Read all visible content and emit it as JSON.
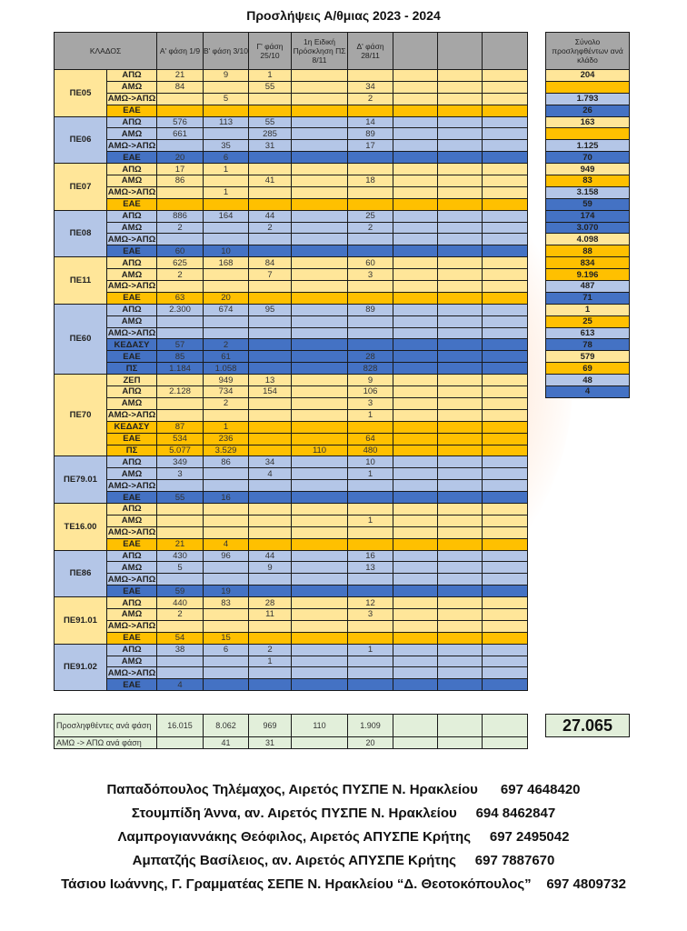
{
  "title": "Προσλήψεις Α/θμιας 2023 - 2024",
  "headers": {
    "klados": "ΚΛΑΔΟΣ",
    "phases": [
      "Α' φάση 1/9",
      "Β' φάση 3/10",
      "Γ' φάση 25/10",
      "1η Ειδική Πρόσκληση ΠΣ 8/11",
      "Δ' φάση 28/11",
      "",
      "",
      ""
    ],
    "total": "Σύνολο προσληφθέντων ανά κλάδο"
  },
  "colors": {
    "yellow": "#ffe699",
    "orange": "#ffc000",
    "light_blue": "#b4c6e7",
    "dark_blue": "#4472c4"
  },
  "groups": [
    {
      "name": "ΠΕ05",
      "theme": "y",
      "total": "204",
      "rows": [
        {
          "label": "ΑΠΩ",
          "v": [
            "21",
            "9",
            "1",
            "",
            ""
          ]
        },
        {
          "label": "ΑΜΩ",
          "v": [
            "84",
            "",
            "55",
            "",
            "34"
          ]
        },
        {
          "label": "ΑΜΩ->ΑΠΩ",
          "v": [
            "",
            "5",
            "",
            "",
            "2"
          ]
        },
        {
          "label": "ΕΑΕ",
          "v": [
            "",
            "",
            "",
            "",
            ""
          ],
          "special": true,
          "total": ""
        }
      ]
    },
    {
      "name": "ΠΕ06",
      "theme": "b",
      "total": "1.793",
      "rows": [
        {
          "label": "ΑΠΩ",
          "v": [
            "576",
            "113",
            "55",
            "",
            "14"
          ]
        },
        {
          "label": "ΑΜΩ",
          "v": [
            "661",
            "",
            "285",
            "",
            "89"
          ]
        },
        {
          "label": "ΑΜΩ->ΑΠΩ",
          "v": [
            "",
            "35",
            "31",
            "",
            "17"
          ]
        },
        {
          "label": "ΕΑΕ",
          "v": [
            "20",
            "6",
            "",
            "",
            ""
          ],
          "special": true,
          "total": "26"
        }
      ]
    },
    {
      "name": "ΠΕ07",
      "theme": "y",
      "total": "163",
      "rows": [
        {
          "label": "ΑΠΩ",
          "v": [
            "17",
            "1",
            "",
            "",
            ""
          ]
        },
        {
          "label": "ΑΜΩ",
          "v": [
            "86",
            "",
            "41",
            "",
            "18"
          ]
        },
        {
          "label": "ΑΜΩ->ΑΠΩ",
          "v": [
            "",
            "1",
            "",
            "",
            ""
          ]
        },
        {
          "label": "ΕΑΕ",
          "v": [
            "",
            "",
            "",
            "",
            ""
          ],
          "special": true,
          "total": ""
        }
      ]
    },
    {
      "name": "ΠΕ08",
      "theme": "b",
      "total": "1.125",
      "rows": [
        {
          "label": "ΑΠΩ",
          "v": [
            "886",
            "164",
            "44",
            "",
            "25"
          ]
        },
        {
          "label": "ΑΜΩ",
          "v": [
            "2",
            "",
            "2",
            "",
            "2"
          ]
        },
        {
          "label": "ΑΜΩ->ΑΠΩ",
          "v": [
            "",
            "",
            "",
            "",
            ""
          ]
        },
        {
          "label": "ΕΑΕ",
          "v": [
            "60",
            "10",
            "",
            "",
            ""
          ],
          "special": true,
          "total": "70"
        }
      ]
    },
    {
      "name": "ΠΕ11",
      "theme": "y",
      "total": "949",
      "rows": [
        {
          "label": "ΑΠΩ",
          "v": [
            "625",
            "168",
            "84",
            "",
            "60"
          ]
        },
        {
          "label": "ΑΜΩ",
          "v": [
            "2",
            "",
            "7",
            "",
            "3"
          ]
        },
        {
          "label": "ΑΜΩ->ΑΠΩ",
          "v": [
            "",
            "",
            "",
            "",
            ""
          ]
        },
        {
          "label": "ΕΑΕ",
          "v": [
            "63",
            "20",
            "",
            "",
            ""
          ],
          "special": true,
          "total": "83"
        }
      ]
    },
    {
      "name": "ΠΕ60",
      "theme": "b",
      "total": "3.158",
      "rows": [
        {
          "label": "ΑΠΩ",
          "v": [
            "2.300",
            "674",
            "95",
            "",
            "89"
          ]
        },
        {
          "label": "ΑΜΩ",
          "v": [
            "",
            "",
            "",
            "",
            ""
          ]
        },
        {
          "label": "ΑΜΩ->ΑΠΩ",
          "v": [
            "",
            "",
            "",
            "",
            ""
          ]
        },
        {
          "label": "ΚΕΔΑΣΥ",
          "v": [
            "57",
            "2",
            "",
            "",
            ""
          ],
          "special": true,
          "total": "59"
        },
        {
          "label": "ΕΑΕ",
          "v": [
            "85",
            "61",
            "",
            "",
            "28"
          ],
          "special": true,
          "total": "174"
        },
        {
          "label": "ΠΣ",
          "v": [
            "1.184",
            "1.058",
            "",
            "",
            "828"
          ],
          "special": true,
          "total": "3.070"
        }
      ]
    },
    {
      "name": "ΠΕ70",
      "theme": "y",
      "total": "4.098",
      "rows": [
        {
          "label": "ΖΕΠ",
          "v": [
            "",
            "949",
            "13",
            "",
            "9"
          ]
        },
        {
          "label": "ΑΠΩ",
          "v": [
            "2.128",
            "734",
            "154",
            "",
            "106"
          ]
        },
        {
          "label": "ΑΜΩ",
          "v": [
            "",
            "2",
            "",
            "",
            "3"
          ]
        },
        {
          "label": "ΑΜΩ->ΑΠΩ",
          "v": [
            "",
            "",
            "",
            "",
            "1"
          ]
        },
        {
          "label": "ΚΕΔΑΣΥ",
          "v": [
            "87",
            "1",
            "",
            "",
            ""
          ],
          "special": true,
          "total": "88"
        },
        {
          "label": "ΕΑΕ",
          "v": [
            "534",
            "236",
            "",
            "",
            "64"
          ],
          "special": true,
          "total": "834"
        },
        {
          "label": "ΠΣ",
          "v": [
            "5.077",
            "3.529",
            "",
            "110",
            "480"
          ],
          "special": true,
          "total": "9.196"
        }
      ]
    },
    {
      "name": "ΠΕ79.01",
      "theme": "b",
      "total": "487",
      "rows": [
        {
          "label": "ΑΠΩ",
          "v": [
            "349",
            "86",
            "34",
            "",
            "10"
          ]
        },
        {
          "label": "ΑΜΩ",
          "v": [
            "3",
            "",
            "4",
            "",
            "1"
          ]
        },
        {
          "label": "ΑΜΩ->ΑΠΩ",
          "v": [
            "",
            "",
            "",
            "",
            ""
          ]
        },
        {
          "label": "ΕΑΕ",
          "v": [
            "55",
            "16",
            "",
            "",
            ""
          ],
          "special": true,
          "total": "71"
        }
      ]
    },
    {
      "name": "ΤΕ16.00",
      "theme": "y",
      "total": "1",
      "rows": [
        {
          "label": "ΑΠΩ",
          "v": [
            "",
            "",
            "",
            "",
            ""
          ]
        },
        {
          "label": "ΑΜΩ",
          "v": [
            "",
            "",
            "",
            "",
            "1"
          ]
        },
        {
          "label": "ΑΜΩ->ΑΠΩ",
          "v": [
            "",
            "",
            "",
            "",
            ""
          ]
        },
        {
          "label": "ΕΑΕ",
          "v": [
            "21",
            "4",
            "",
            "",
            ""
          ],
          "special": true,
          "total": "25"
        }
      ]
    },
    {
      "name": "ΠΕ86",
      "theme": "b",
      "total": "613",
      "rows": [
        {
          "label": "ΑΠΩ",
          "v": [
            "430",
            "96",
            "44",
            "",
            "16"
          ]
        },
        {
          "label": "ΑΜΩ",
          "v": [
            "5",
            "",
            "9",
            "",
            "13"
          ]
        },
        {
          "label": "ΑΜΩ->ΑΠΩ",
          "v": [
            "",
            "",
            "",
            "",
            ""
          ]
        },
        {
          "label": "ΕΑΕ",
          "v": [
            "59",
            "19",
            "",
            "",
            ""
          ],
          "special": true,
          "total": "78"
        }
      ]
    },
    {
      "name": "ΠΕ91.01",
      "theme": "y",
      "total": "579",
      "rows": [
        {
          "label": "ΑΠΩ",
          "v": [
            "440",
            "83",
            "28",
            "",
            "12"
          ]
        },
        {
          "label": "ΑΜΩ",
          "v": [
            "2",
            "",
            "11",
            "",
            "3"
          ]
        },
        {
          "label": "ΑΜΩ->ΑΠΩ",
          "v": [
            "",
            "",
            "",
            "",
            ""
          ]
        },
        {
          "label": "ΕΑΕ",
          "v": [
            "54",
            "15",
            "",
            "",
            ""
          ],
          "special": true,
          "total": "69"
        }
      ]
    },
    {
      "name": "ΠΕ91.02",
      "theme": "b",
      "total": "48",
      "rows": [
        {
          "label": "ΑΠΩ",
          "v": [
            "38",
            "6",
            "2",
            "",
            "1"
          ]
        },
        {
          "label": "ΑΜΩ",
          "v": [
            "",
            "",
            "1",
            "",
            ""
          ]
        },
        {
          "label": "ΑΜΩ->ΑΠΩ",
          "v": [
            "",
            "",
            "",
            "",
            ""
          ]
        },
        {
          "label": "ΕΑΕ",
          "v": [
            "4",
            "",
            "",
            "",
            ""
          ],
          "special": true,
          "total": "4"
        }
      ]
    }
  ],
  "summary": {
    "hired_label": "Προσληφθέντες ανά φάση",
    "hired": [
      "16.015",
      "8.062",
      "969",
      "110",
      "1.909",
      "",
      "",
      ""
    ],
    "conv_label": "ΑΜΩ -> ΑΠΩ ανά φάση",
    "conv": [
      "",
      "41",
      "31",
      "",
      "20",
      "",
      "",
      ""
    ],
    "grand_total": "27.065"
  },
  "footer": [
    "Παπαδόπουλος Τηλέμαχος, Αιρετός ΠΥΣΠΕ Ν. Ηρακλείου      697 4648420",
    "Στουμπίδη Άννα, αν. Αιρετός ΠΥΣΠΕ Ν. Ηρακλείου     694 8462847",
    "Λαμπρογιαννάκης Θεόφιλος, Αιρετός ΑΠΥΣΠΕ Κρήτης     697 2495042",
    "Αμπατζής Βασίλειος, αν. Αιρετός ΑΠΥΣΠΕ Κρήτης     697 7887670",
    "Τάσιου Ιωάννης, Γ. Γραμματέας ΣΕΠΕ Ν. Ηρακλείου “Δ. Θεοτοκόπουλος”    697 4809732"
  ]
}
